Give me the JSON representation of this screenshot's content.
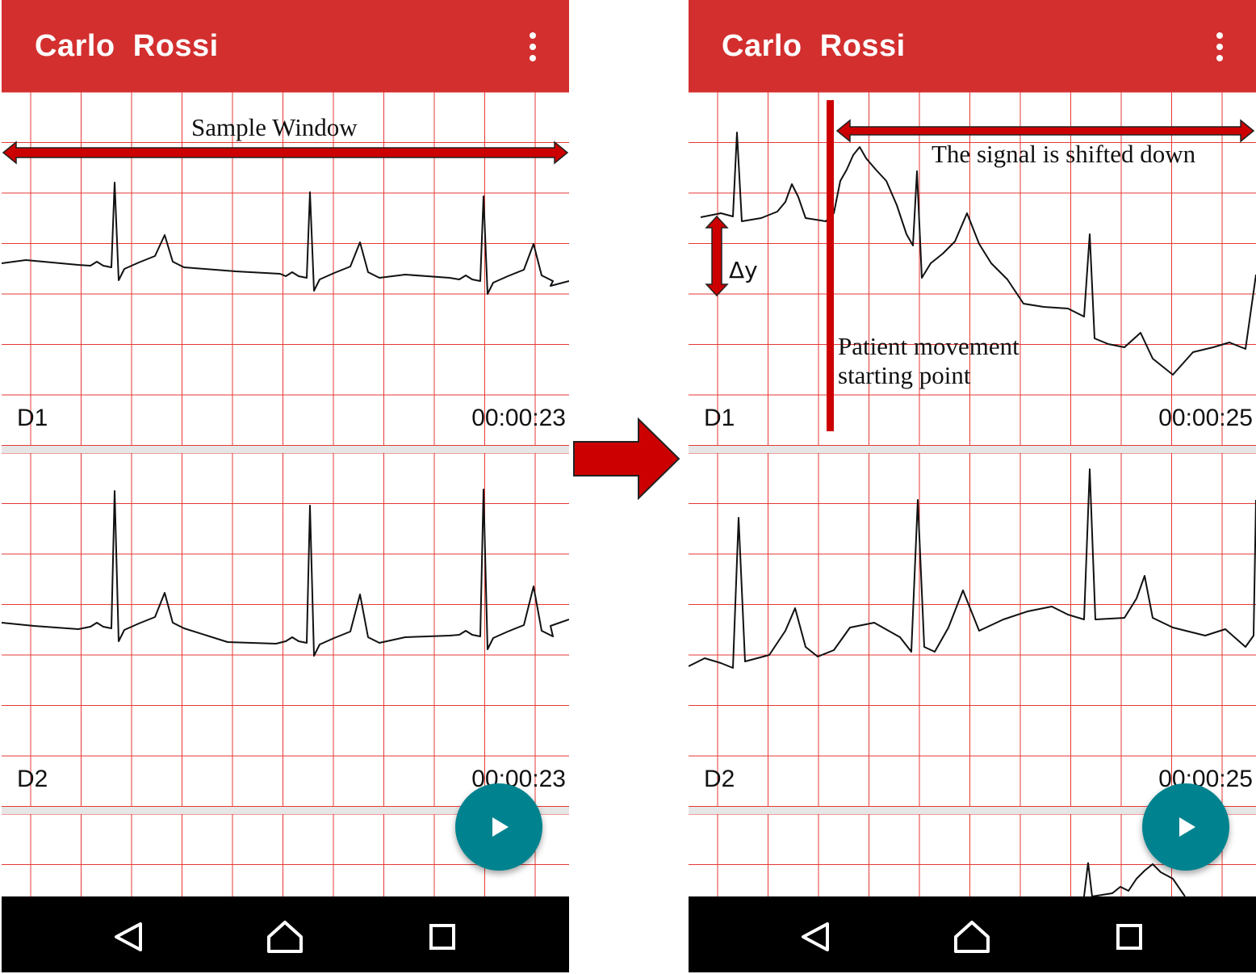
{
  "left_screen": {
    "app_title": "Carlo  Rossi",
    "panels": [
      {
        "lead": "D1",
        "time": "00:00:23"
      },
      {
        "lead": "D2",
        "time": "00:00:23"
      }
    ],
    "annotation_sample_window": "Sample Window"
  },
  "right_screen": {
    "app_title": "Carlo  Rossi",
    "panels": [
      {
        "lead": "D1",
        "time": "00:00:25"
      },
      {
        "lead": "D2",
        "time": "00:00:25"
      }
    ],
    "annotation_shift": "The signal is shifted down",
    "annotation_delta": "Δy",
    "annotation_movement_line1": "Patient movement",
    "annotation_movement_line2": "starting point"
  },
  "icons": {
    "menu": "more-vert-icon",
    "fab": "play-icon",
    "nav": [
      "back-triangle-icon",
      "home-icon",
      "recents-square-icon"
    ]
  },
  "colors": {
    "appbar": "#d32f2f",
    "grid": "#e53935",
    "fab": "#00838f",
    "annotation_red": "#cc0000",
    "navbar": "#000000"
  }
}
